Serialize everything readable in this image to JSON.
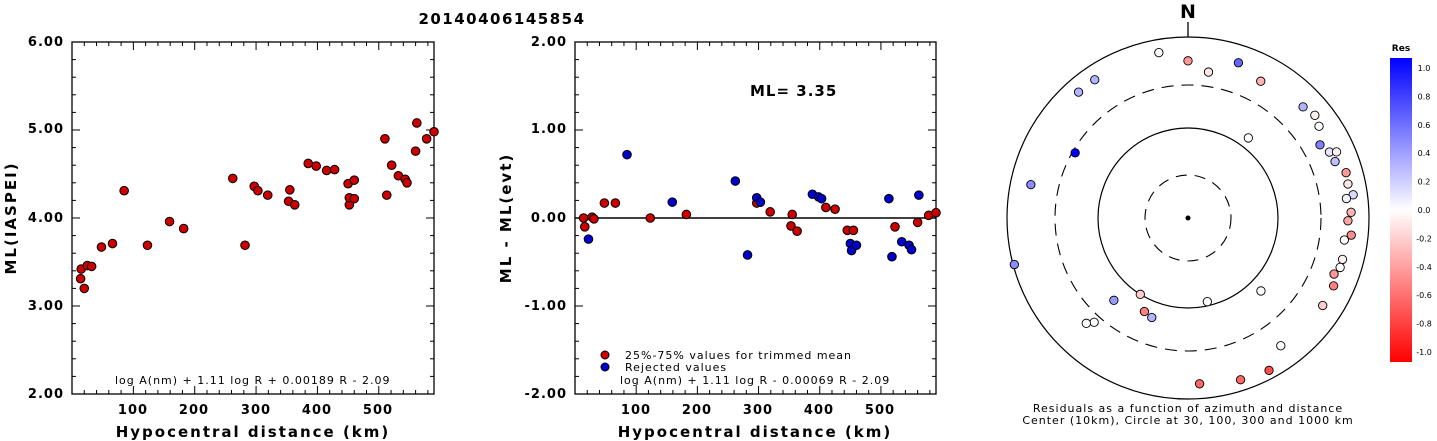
{
  "event_id": "20140406145854",
  "chart_data": [
    {
      "type": "scatter",
      "title": "20140406145854",
      "xlabel": "Hypocentral distance (km)",
      "ylabel": "ML(IASPEI)",
      "xlim": [
        0,
        590
      ],
      "ylim": [
        2.0,
        6.0
      ],
      "xticks": [
        "100",
        "200",
        "300",
        "400",
        "500"
      ],
      "yticks": [
        "2.00",
        "3.00",
        "4.00",
        "5.00",
        "6.00"
      ],
      "formula": "log A(nm) + 1.11 log R + 0.00189 R - 2.09",
      "marker_color": "#cc0000",
      "points": [
        [
          15,
          3.42
        ],
        [
          14,
          3.31
        ],
        [
          20,
          3.2
        ],
        [
          25,
          3.46
        ],
        [
          32,
          3.45
        ],
        [
          48,
          3.67
        ],
        [
          66,
          3.71
        ],
        [
          85,
          4.31
        ],
        [
          123,
          3.69
        ],
        [
          159,
          3.96
        ],
        [
          182,
          3.88
        ],
        [
          262,
          4.45
        ],
        [
          282,
          3.69
        ],
        [
          297,
          4.36
        ],
        [
          303,
          4.31
        ],
        [
          319,
          4.26
        ],
        [
          355,
          4.32
        ],
        [
          353,
          4.19
        ],
        [
          363,
          4.15
        ],
        [
          385,
          4.62
        ],
        [
          398,
          4.59
        ],
        [
          415,
          4.54
        ],
        [
          428,
          4.55
        ],
        [
          450,
          4.39
        ],
        [
          452,
          4.15
        ],
        [
          452,
          4.23
        ],
        [
          460,
          4.43
        ],
        [
          460,
          4.22
        ],
        [
          510,
          4.9
        ],
        [
          513,
          4.26
        ],
        [
          521,
          4.6
        ],
        [
          532,
          4.48
        ],
        [
          543,
          4.44
        ],
        [
          546,
          4.4
        ],
        [
          560,
          4.76
        ],
        [
          562,
          5.08
        ],
        [
          578,
          4.9
        ],
        [
          590,
          4.98
        ]
      ]
    },
    {
      "type": "scatter",
      "xlabel": "Hypocentral distance (km)",
      "ylabel": "ML - ML(evt)",
      "xlim": [
        0,
        590
      ],
      "ylim": [
        -2.0,
        2.0
      ],
      "xticks": [
        "100",
        "200",
        "300",
        "400",
        "500"
      ],
      "yticks": [
        "2.00",
        "1.00",
        "0.00",
        "-1.00",
        "-2.00"
      ],
      "annotation": "ML= 3.35",
      "formula": "log A(nm) + 1.11 log R - 0.00069 R - 2.09",
      "reference_line_y": 0.0,
      "legend": [
        {
          "label": "25%-75% values for trimmed mean",
          "color": "#cc0000"
        },
        {
          "label": "Rejected values",
          "color": "#0000cc"
        }
      ],
      "legend_placement": "bottom-left",
      "trimmed_points": [
        [
          14,
          0.0
        ],
        [
          16,
          -0.1
        ],
        [
          28,
          0.01
        ],
        [
          31,
          -0.01
        ],
        [
          48,
          0.17
        ],
        [
          66,
          0.17
        ],
        [
          123,
          0.0
        ],
        [
          182,
          0.04
        ],
        [
          297,
          0.17
        ],
        [
          319,
          0.07
        ],
        [
          355,
          0.04
        ],
        [
          353,
          -0.09
        ],
        [
          363,
          -0.15
        ],
        [
          410,
          0.12
        ],
        [
          425,
          0.1
        ],
        [
          445,
          -0.14
        ],
        [
          455,
          -0.14
        ],
        [
          523,
          -0.1
        ],
        [
          560,
          -0.05
        ],
        [
          578,
          0.03
        ],
        [
          590,
          0.06
        ]
      ],
      "rejected_points": [
        [
          22,
          -0.24
        ],
        [
          85,
          0.72
        ],
        [
          159,
          0.18
        ],
        [
          262,
          0.42
        ],
        [
          282,
          -0.42
        ],
        [
          297,
          0.23
        ],
        [
          303,
          0.18
        ],
        [
          388,
          0.27
        ],
        [
          398,
          0.24
        ],
        [
          403,
          0.22
        ],
        [
          450,
          -0.29
        ],
        [
          452,
          -0.37
        ],
        [
          460,
          -0.31
        ],
        [
          513,
          0.22
        ],
        [
          518,
          -0.44
        ],
        [
          534,
          -0.27
        ],
        [
          546,
          -0.31
        ],
        [
          550,
          -0.36
        ],
        [
          562,
          0.26
        ]
      ]
    },
    {
      "type": "scatter",
      "subtype": "polar",
      "north_label": "N",
      "caption_line1": "Residuals as a function of azimuth and distance",
      "caption_line2": "Center (10km), Circle at 30, 100, 300 and 1000 km",
      "rings_km": [
        10,
        30,
        100,
        300,
        1000
      ],
      "colorbar_title": "Res",
      "colorbar_ticks": [
        "1.0",
        "0.8",
        "0.6",
        "0.4",
        "0.2",
        "0.0",
        "-0.2",
        "-0.4",
        "-0.6",
        "-0.8",
        "-1.0"
      ],
      "stations": [
        {
          "az": 0,
          "dist": 550,
          "res": -0.4
        },
        {
          "az": 8,
          "dist": 430,
          "res": -0.1
        },
        {
          "az": 18,
          "dist": 640,
          "res": 0.6
        },
        {
          "az": 28,
          "dist": 520,
          "res": -0.3
        },
        {
          "az": 37,
          "dist": 130,
          "res": 0.0
        },
        {
          "az": 46,
          "dist": 590,
          "res": 0.3
        },
        {
          "az": 51,
          "dist": 640,
          "res": -0.05
        },
        {
          "az": 55,
          "dist": 590,
          "res": 0.0
        },
        {
          "az": 61,
          "dist": 470,
          "res": 0.5
        },
        {
          "az": 65,
          "dist": 535,
          "res": 0.1
        },
        {
          "az": 66,
          "dist": 630,
          "res": -0.05
        },
        {
          "az": 69,
          "dist": 555,
          "res": 0.25
        },
        {
          "az": 74,
          "dist": 660,
          "res": -0.4
        },
        {
          "az": 78,
          "dist": 645,
          "res": -0.1
        },
        {
          "az": 82,
          "dist": 700,
          "res": 0.15
        },
        {
          "az": 83,
          "dist": 585,
          "res": 0.05
        },
        {
          "az": 88,
          "dist": 640,
          "res": -0.3
        },
        {
          "az": 91,
          "dist": 590,
          "res": -0.35
        },
        {
          "az": 96,
          "dist": 655,
          "res": -0.45
        },
        {
          "az": 98,
          "dist": 560,
          "res": 0.0
        },
        {
          "az": 105,
          "dist": 590,
          "res": -0.05
        },
        {
          "az": 108,
          "dist": 590,
          "res": 0.0
        },
        {
          "az": 111,
          "dist": 540,
          "res": -0.4
        },
        {
          "az": 115,
          "dist": 600,
          "res": -0.5
        },
        {
          "az": 123,
          "dist": 600,
          "res": -0.2
        },
        {
          "az": 135,
          "dist": 140,
          "res": 0.0
        },
        {
          "az": 144,
          "dist": 560,
          "res": 0.0
        },
        {
          "az": 152,
          "dist": 810,
          "res": -0.7
        },
        {
          "az": 162,
          "dist": 760,
          "res": -0.6
        },
        {
          "az": 167,
          "dist": 90,
          "res": 0.0
        },
        {
          "az": 176,
          "dist": 690,
          "res": -0.6
        },
        {
          "az": 200,
          "dist": 150,
          "res": 0.3
        },
        {
          "az": 205,
          "dist": 140,
          "res": -0.5
        },
        {
          "az": 212,
          "dist": 100,
          "res": -0.2
        },
        {
          "az": 222,
          "dist": 170,
          "res": 0.4
        },
        {
          "az": 222,
          "dist": 360,
          "res": 0.0
        },
        {
          "az": 224,
          "dist": 420,
          "res": 0.0
        },
        {
          "az": 255,
          "dist": 970,
          "res": 0.45
        },
        {
          "az": 282,
          "dist": 600,
          "res": 0.45
        },
        {
          "az": 300,
          "dist": 280,
          "res": 1.0
        },
        {
          "az": 319,
          "dist": 700,
          "res": 0.3
        },
        {
          "az": 326,
          "dist": 700,
          "res": 0.3
        },
        {
          "az": 350,
          "dist": 720,
          "res": 0.0
        }
      ]
    }
  ]
}
